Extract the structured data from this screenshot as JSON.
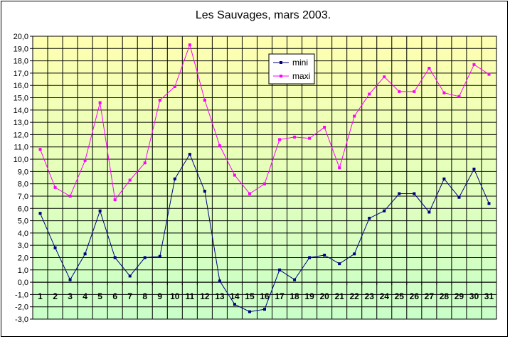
{
  "chart_data": {
    "type": "line",
    "title": "Les Sauvages, mars 2003.",
    "xlabel": "",
    "ylabel": "",
    "x": [
      1,
      2,
      3,
      4,
      5,
      6,
      7,
      8,
      9,
      10,
      11,
      12,
      13,
      14,
      15,
      16,
      17,
      18,
      19,
      20,
      21,
      22,
      23,
      24,
      25,
      26,
      27,
      28,
      29,
      30,
      31
    ],
    "ylim": [
      -3.0,
      20.0
    ],
    "ytick_step": 1.0,
    "ytick_labels": [
      "-3,0",
      "-2,0",
      "-1,0",
      "0,0",
      "1,0",
      "2,0",
      "3,0",
      "4,0",
      "5,0",
      "6,0",
      "7,0",
      "8,0",
      "9,0",
      "10,0",
      "11,0",
      "12,0",
      "13,0",
      "14,0",
      "15,0",
      "16,0",
      "17,0",
      "18,0",
      "19,0",
      "20,0"
    ],
    "grid": true,
    "legend_position": "top-center",
    "background_gradient": [
      "#ffffb0",
      "#c8ffc8"
    ],
    "series": [
      {
        "name": "mini",
        "color": "#000080",
        "marker": "square",
        "values": [
          5.6,
          2.8,
          0.2,
          2.3,
          5.8,
          2.0,
          0.5,
          2.0,
          2.1,
          8.4,
          10.4,
          7.4,
          0.1,
          -1.8,
          -2.4,
          -2.2,
          1.0,
          0.2,
          2.0,
          2.2,
          1.5,
          2.3,
          5.2,
          5.8,
          7.2,
          7.2,
          5.7,
          8.4,
          6.9,
          9.2,
          6.4
        ]
      },
      {
        "name": "maxi",
        "color": "#ff00ff",
        "marker": "square",
        "values": [
          10.8,
          7.7,
          7.0,
          9.9,
          14.6,
          6.7,
          8.3,
          9.7,
          14.8,
          15.9,
          19.3,
          14.8,
          11.1,
          8.7,
          7.2,
          8.0,
          11.6,
          11.8,
          11.7,
          12.6,
          9.3,
          13.5,
          15.3,
          16.7,
          15.5,
          15.5,
          17.4,
          15.4,
          15.1,
          17.7,
          16.9
        ]
      }
    ]
  }
}
